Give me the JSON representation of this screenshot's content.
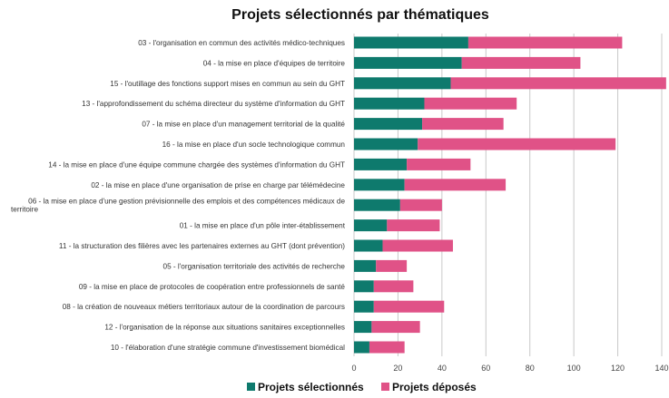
{
  "chart_data": {
    "type": "bar",
    "orientation": "horizontal",
    "stacked": true,
    "title": "Projets sélectionnés par thématiques",
    "categories": [
      "03 - l'organisation en commun des activités médico-techniques",
      "04 - la mise en place d'équipes de territoire",
      "15 - l'outillage des fonctions support mises en commun au sein du GHT",
      "13 - l'approfondissement du schéma directeur du système d'information du GHT",
      "07 - la mise en place d'un management territorial de la qualité",
      "16 - la mise en place d'un socle technologique commun",
      "14 - la mise en place d'une équipe commune chargée des systèmes d'information du GHT",
      "02 - la mise en place d'une organisation de prise en charge par télémédecine",
      "06 - la mise en place d'une gestion prévisionnelle des emplois et des compétences médicaux de territoire",
      "01 - la mise en place d'un pôle inter-établissement",
      "11 - la structuration des filières avec les partenaires externes au GHT (dont prévention)",
      "05 - l'organisation territoriale des activités de recherche",
      "09 - la mise en place de protocoles de coopération entre professionnels de santé",
      "08 - la création de nouveaux métiers territoriaux autour de la coordination de parcours",
      "12 - l'organisation de la réponse aux situations sanitaires exceptionnelles",
      "10 - l'élaboration d'une stratégie commune d'investissement biomédical"
    ],
    "series": [
      {
        "name": "Projets sélectionnés",
        "color": "#0e7a6d",
        "values": [
          52,
          49,
          44,
          32,
          31,
          29,
          24,
          23,
          21,
          15,
          13,
          10,
          9,
          9,
          8,
          7
        ]
      },
      {
        "name": "Projets déposés",
        "color": "#e05287",
        "values": [
          70,
          54,
          98,
          42,
          37,
          90,
          29,
          46,
          19,
          24,
          32,
          14,
          18,
          32,
          22,
          16
        ]
      }
    ],
    "xlim": [
      0,
      140
    ],
    "xticks": [
      "0",
      "20",
      "40",
      "60",
      "80",
      "100",
      "120",
      "140"
    ],
    "grid": true,
    "legend": "bottom"
  }
}
